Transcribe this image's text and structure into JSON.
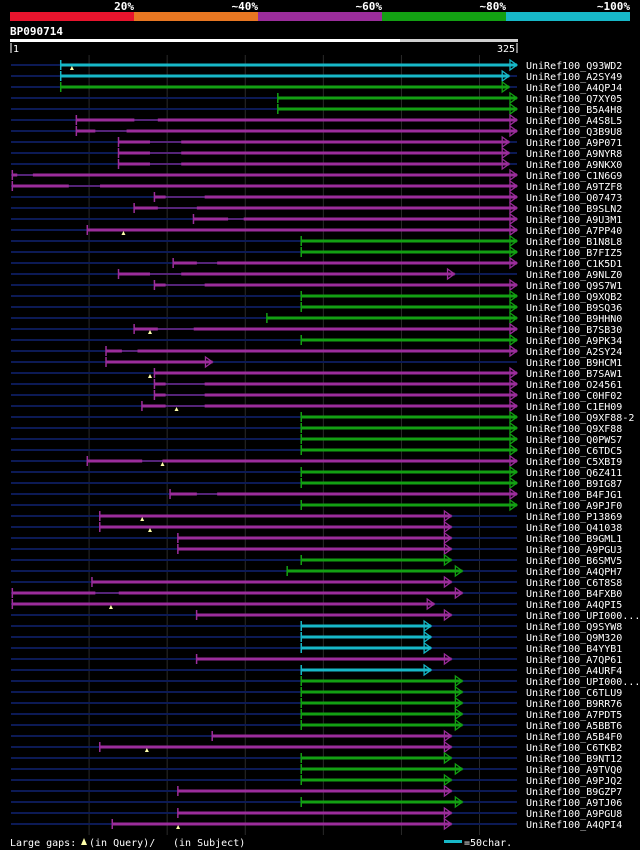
{
  "query": {
    "name": "BP090714",
    "start": "1",
    "end": "325",
    "length": 325
  },
  "legend": {
    "bins": [
      {
        "label": "20%",
        "color": "#e8142d"
      },
      {
        "label": "~40%",
        "color": "#e87722"
      },
      {
        "label": "~60%",
        "color": "#9b2d9b"
      },
      {
        "label": "~80%",
        "color": "#13a013"
      },
      {
        "label": "~100%",
        "color": "#17b8c8"
      }
    ]
  },
  "colors": {
    "cyan": "#17b8c8",
    "green": "#13a013",
    "purple": "#9b2d9b",
    "track": "#0c1a55",
    "grid": "#2a2a2a",
    "gap": "#ffffaa"
  },
  "footer": {
    "gaps_label": "Large gaps:",
    "in_query": "(in Query)/",
    "in_subject": "(in Subject)",
    "scale_label": "=50char."
  },
  "chart_data": {
    "type": "alignment",
    "x_range": [
      1,
      325
    ],
    "hits": [
      {
        "name": "UniRef100_Q93WD2",
        "start": 33,
        "end": 325,
        "color": "cyan",
        "arrow": true,
        "gaps": [
          {
            "a": 40,
            "b": 45
          }
        ]
      },
      {
        "name": "UniRef100_A2SY49",
        "start": 33,
        "end": 320,
        "color": "cyan",
        "arrow": true
      },
      {
        "name": "UniRef100_A4QPJ4",
        "start": 33,
        "end": 320,
        "color": "green",
        "arrow": true
      },
      {
        "name": "UniRef100_Q7XY05",
        "start": 172,
        "end": 325,
        "color": "green",
        "arrow": true
      },
      {
        "name": "UniRef100_B5A4H8",
        "start": 172,
        "end": 325,
        "color": "green",
        "arrow": true
      },
      {
        "name": "UniRef100_A4S8L5",
        "start": 43,
        "end": 325,
        "color": "purple",
        "arrow": true,
        "segments": [
          [
            43,
            80
          ],
          [
            95,
            325
          ]
        ]
      },
      {
        "name": "UniRef100_Q3B9U8",
        "start": 43,
        "end": 325,
        "color": "purple",
        "arrow": true,
        "segments": [
          [
            43,
            55
          ],
          [
            75,
            325
          ]
        ]
      },
      {
        "name": "UniRef100_A9P071",
        "start": 70,
        "end": 320,
        "color": "purple",
        "arrow": true,
        "segments": [
          [
            70,
            90
          ],
          [
            110,
            320
          ]
        ]
      },
      {
        "name": "UniRef100_A9NYR8",
        "start": 70,
        "end": 320,
        "color": "purple",
        "arrow": true,
        "segments": [
          [
            70,
            90
          ],
          [
            110,
            320
          ]
        ]
      },
      {
        "name": "UniRef100_A9NKX0",
        "start": 70,
        "end": 320,
        "color": "purple",
        "arrow": true,
        "segments": [
          [
            70,
            90
          ],
          [
            110,
            320
          ]
        ]
      },
      {
        "name": "UniRef100_C1N6G9",
        "start": 2,
        "end": 325,
        "color": "purple",
        "arrow": true,
        "segments": [
          [
            2,
            5
          ],
          [
            15,
            325
          ]
        ]
      },
      {
        "name": "UniRef100_A9TZF8",
        "start": 2,
        "end": 325,
        "color": "purple",
        "arrow": true,
        "segments": [
          [
            2,
            38
          ],
          [
            58,
            325
          ]
        ]
      },
      {
        "name": "UniRef100_Q07473",
        "start": 93,
        "end": 325,
        "color": "purple",
        "arrow": true,
        "segments": [
          [
            93,
            100
          ],
          [
            125,
            325
          ]
        ]
      },
      {
        "name": "UniRef100_B9SLN2",
        "start": 80,
        "end": 325,
        "color": "purple",
        "arrow": true,
        "segments": [
          [
            80,
            95
          ],
          [
            120,
            325
          ]
        ]
      },
      {
        "name": "UniRef100_A9U3M1",
        "start": 118,
        "end": 325,
        "color": "purple",
        "arrow": true,
        "segments": [
          [
            118,
            140
          ],
          [
            150,
            325
          ]
        ]
      },
      {
        "name": "UniRef100_A7PP40",
        "start": 50,
        "end": 325,
        "color": "purple",
        "arrow": true,
        "gaps": [
          {
            "a": 73,
            "b": 95
          }
        ]
      },
      {
        "name": "UniRef100_B1N8L8",
        "start": 187,
        "end": 325,
        "color": "green",
        "arrow": true
      },
      {
        "name": "UniRef100_B7FIZ5",
        "start": 187,
        "end": 325,
        "color": "green",
        "arrow": true
      },
      {
        "name": "UniRef100_C1K5D1",
        "start": 105,
        "end": 325,
        "color": "purple",
        "arrow": true,
        "segments": [
          [
            105,
            120
          ],
          [
            133,
            325
          ]
        ]
      },
      {
        "name": "UniRef100_A9NLZ0",
        "start": 70,
        "end": 285,
        "color": "purple",
        "arrow": true,
        "segments": [
          [
            70,
            90
          ],
          [
            110,
            285
          ]
        ]
      },
      {
        "name": "UniRef100_Q9S7W1",
        "start": 93,
        "end": 325,
        "color": "purple",
        "arrow": true,
        "segments": [
          [
            93,
            100
          ],
          [
            125,
            325
          ]
        ]
      },
      {
        "name": "UniRef100_Q9XQB2",
        "start": 187,
        "end": 325,
        "color": "green",
        "arrow": true
      },
      {
        "name": "UniRef100_B9SQ36",
        "start": 187,
        "end": 325,
        "color": "green",
        "arrow": true
      },
      {
        "name": "UniRef100_B9HHN0",
        "start": 165,
        "end": 325,
        "color": "green",
        "arrow": true
      },
      {
        "name": "UniRef100_B7SB30",
        "start": 80,
        "end": 325,
        "color": "purple",
        "arrow": true,
        "segments": [
          [
            80,
            95
          ],
          [
            118,
            325
          ]
        ],
        "gaps": [
          {
            "a": 90
          }
        ]
      },
      {
        "name": "UniRef100_A9PK34",
        "start": 187,
        "end": 325,
        "color": "green",
        "arrow": true
      },
      {
        "name": "UniRef100_A2SY24",
        "start": 62,
        "end": 325,
        "color": "purple",
        "arrow": true,
        "segments": [
          [
            62,
            72
          ],
          [
            82,
            325
          ]
        ]
      },
      {
        "name": "UniRef100_B9HCM1",
        "start": 62,
        "end": 130,
        "color": "purple",
        "arrow": true
      },
      {
        "name": "UniRef100_B7SAW1",
        "start": 93,
        "end": 325,
        "color": "purple",
        "arrow": true,
        "gaps": [
          {
            "a": 90
          }
        ]
      },
      {
        "name": "UniRef100_O24561",
        "start": 93,
        "end": 325,
        "color": "purple",
        "arrow": true,
        "segments": [
          [
            93,
            100
          ],
          [
            125,
            325
          ]
        ]
      },
      {
        "name": "UniRef100_C0HF02",
        "start": 93,
        "end": 325,
        "color": "purple",
        "arrow": true,
        "segments": [
          [
            93,
            100
          ],
          [
            125,
            325
          ]
        ]
      },
      {
        "name": "UniRef100_C1EH09",
        "start": 85,
        "end": 325,
        "color": "purple",
        "arrow": true,
        "segments": [
          [
            85,
            100
          ],
          [
            125,
            325
          ]
        ],
        "gaps": [
          {
            "a": 107
          }
        ]
      },
      {
        "name": "UniRef100_Q9XF88-2",
        "start": 187,
        "end": 325,
        "color": "green",
        "arrow": true
      },
      {
        "name": "UniRef100_Q9XF88",
        "start": 187,
        "end": 325,
        "color": "green",
        "arrow": true
      },
      {
        "name": "UniRef100_Q0PWS7",
        "start": 187,
        "end": 325,
        "color": "green",
        "arrow": true
      },
      {
        "name": "UniRef100_C6TDC5",
        "start": 187,
        "end": 325,
        "color": "green",
        "arrow": true
      },
      {
        "name": "UniRef100_C5XBI9",
        "start": 50,
        "end": 325,
        "color": "purple",
        "arrow": true,
        "segments": [
          [
            50,
            85
          ],
          [
            98,
            325
          ]
        ],
        "gaps": [
          {
            "a": 98
          }
        ]
      },
      {
        "name": "UniRef100_Q6Z411",
        "start": 187,
        "end": 325,
        "color": "green",
        "arrow": true
      },
      {
        "name": "UniRef100_B9IG87",
        "start": 187,
        "end": 325,
        "color": "green",
        "arrow": true
      },
      {
        "name": "UniRef100_B4FJG1",
        "start": 103,
        "end": 325,
        "color": "purple",
        "arrow": true,
        "segments": [
          [
            103,
            120
          ],
          [
            133,
            325
          ]
        ]
      },
      {
        "name": "UniRef100_A9PJF0",
        "start": 187,
        "end": 325,
        "color": "green",
        "arrow": true
      },
      {
        "name": "UniRef100_P13869",
        "start": 58,
        "end": 283,
        "color": "purple",
        "arrow": true,
        "gaps": [
          {
            "a": 85
          }
        ]
      },
      {
        "name": "UniRef100_Q41038",
        "start": 58,
        "end": 283,
        "color": "purple",
        "arrow": true,
        "gaps": [
          {
            "a": 90
          }
        ]
      },
      {
        "name": "UniRef100_B9GML1",
        "start": 108,
        "end": 283,
        "color": "purple",
        "arrow": true
      },
      {
        "name": "UniRef100_A9PGU3",
        "start": 108,
        "end": 283,
        "color": "purple",
        "arrow": true
      },
      {
        "name": "UniRef100_B6SMV5",
        "start": 187,
        "end": 283,
        "color": "green",
        "arrow": true
      },
      {
        "name": "UniRef100_A4QPH7",
        "start": 178,
        "end": 290,
        "color": "green",
        "arrow": true
      },
      {
        "name": "UniRef100_C6T8S8",
        "start": 53,
        "end": 283,
        "color": "purple",
        "arrow": true
      },
      {
        "name": "UniRef100_B4FXB0",
        "start": 2,
        "end": 290,
        "color": "purple",
        "arrow": true,
        "segments": [
          [
            2,
            55
          ],
          [
            70,
            290
          ]
        ]
      },
      {
        "name": "UniRef100_A4QPI5",
        "start": 2,
        "end": 272,
        "color": "purple",
        "arrow": true,
        "gaps": [
          {
            "a": 65
          }
        ]
      },
      {
        "name": "UniRef100_UPI000...",
        "start": 120,
        "end": 283,
        "color": "purple",
        "arrow": true
      },
      {
        "name": "UniRef100_Q9SYW8",
        "start": 187,
        "end": 270,
        "color": "cyan",
        "arrow": true
      },
      {
        "name": "UniRef100_Q9M320",
        "start": 187,
        "end": 270,
        "color": "cyan",
        "arrow": true
      },
      {
        "name": "UniRef100_B4YYB1",
        "start": 187,
        "end": 270,
        "color": "cyan",
        "arrow": true
      },
      {
        "name": "UniRef100_A7QP61",
        "start": 120,
        "end": 283,
        "color": "purple",
        "arrow": true
      },
      {
        "name": "UniRef100_A4URF4",
        "start": 187,
        "end": 270,
        "color": "cyan",
        "arrow": true
      },
      {
        "name": "UniRef100_UPI000...",
        "start": 187,
        "end": 290,
        "color": "green",
        "arrow": true
      },
      {
        "name": "UniRef100_C6TLU9",
        "start": 187,
        "end": 290,
        "color": "green",
        "arrow": true
      },
      {
        "name": "UniRef100_B9RR76",
        "start": 187,
        "end": 290,
        "color": "green",
        "arrow": true
      },
      {
        "name": "UniRef100_A7PDT5",
        "start": 187,
        "end": 290,
        "color": "green",
        "arrow": true
      },
      {
        "name": "UniRef100_A5BBT6",
        "start": 187,
        "end": 290,
        "color": "green",
        "arrow": true
      },
      {
        "name": "UniRef100_A5B4F0",
        "start": 130,
        "end": 283,
        "color": "purple",
        "arrow": true
      },
      {
        "name": "UniRef100_C6TKB2",
        "start": 58,
        "end": 283,
        "color": "purple",
        "arrow": true,
        "gaps": [
          {
            "a": 88
          }
        ]
      },
      {
        "name": "UniRef100_B9NT12",
        "start": 187,
        "end": 283,
        "color": "green",
        "arrow": true
      },
      {
        "name": "UniRef100_A9TVQ0",
        "start": 187,
        "end": 290,
        "color": "green",
        "arrow": true
      },
      {
        "name": "UniRef100_A9PJQ2",
        "start": 187,
        "end": 283,
        "color": "green",
        "arrow": true
      },
      {
        "name": "UniRef100_B9GZP7",
        "start": 108,
        "end": 283,
        "color": "purple",
        "arrow": true
      },
      {
        "name": "UniRef100_A9TJ06",
        "start": 187,
        "end": 290,
        "color": "green",
        "arrow": true
      },
      {
        "name": "UniRef100_A9PGU8",
        "start": 108,
        "end": 283,
        "color": "purple",
        "arrow": true
      },
      {
        "name": "UniRef100_A4QPI4",
        "start": 66,
        "end": 283,
        "color": "purple",
        "arrow": true,
        "gaps": [
          {
            "a": 108
          }
        ]
      }
    ]
  }
}
